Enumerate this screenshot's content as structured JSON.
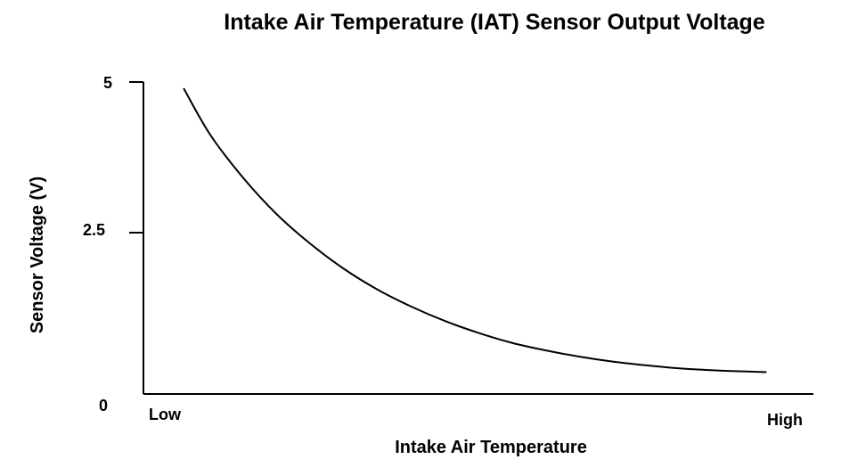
{
  "chart_data": {
    "type": "line",
    "title": "Intake Air Temperature (IAT) Sensor Output Voltage",
    "xlabel": "Intake Air Temperature",
    "ylabel": "Sensor Voltage (V)",
    "x_ticks": [
      "Low",
      "High"
    ],
    "y_ticks": [
      "5",
      "2.5",
      "0"
    ],
    "ylim": [
      0,
      5
    ],
    "xlim": [
      0,
      1
    ],
    "grid": false,
    "legend": "none",
    "colors": {
      "line": "#000000",
      "axis": "#000000",
      "background": "#ffffff"
    },
    "series": [
      {
        "x": [
          0.06,
          0.1,
          0.15,
          0.2,
          0.25,
          0.3,
          0.35,
          0.4,
          0.45,
          0.5,
          0.55,
          0.6,
          0.65,
          0.7,
          0.75,
          0.8,
          0.85,
          0.9,
          0.93
        ],
        "values": [
          4.9,
          4.15,
          3.45,
          2.87,
          2.4,
          2.0,
          1.67,
          1.4,
          1.17,
          0.98,
          0.82,
          0.7,
          0.6,
          0.52,
          0.46,
          0.41,
          0.38,
          0.36,
          0.35
        ]
      }
    ]
  }
}
